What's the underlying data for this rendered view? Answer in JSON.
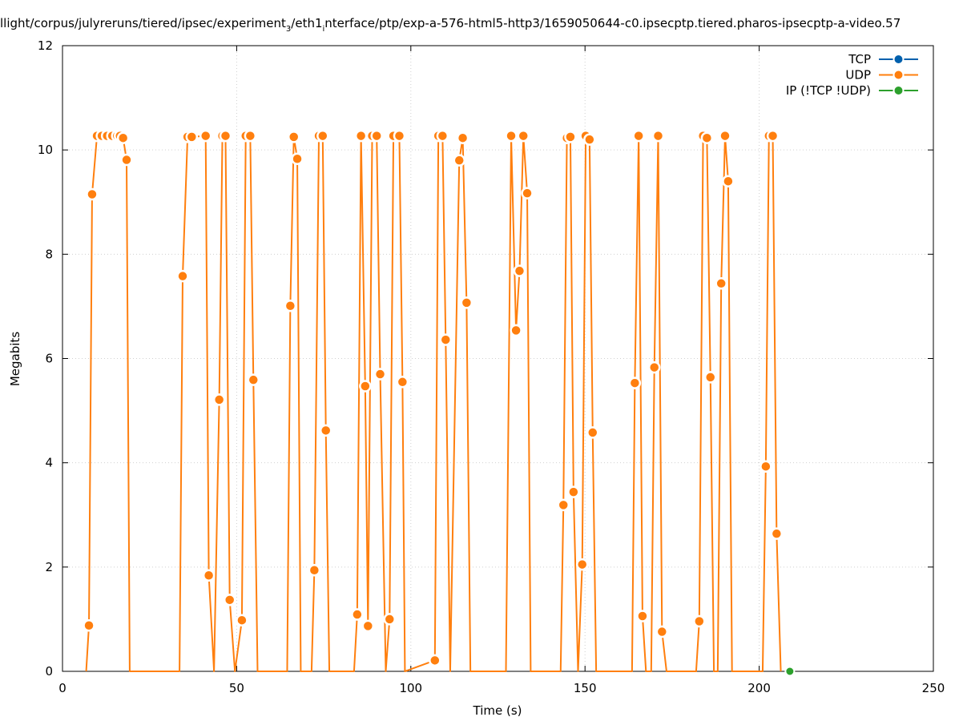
{
  "chart_data": {
    "type": "line",
    "title": "llight/corpus/julyreruns/tiered/ipsec/experiment",
    "title_parts": {
      "a": "llight/corpus/julyreruns/tiered/ipsec/experiment",
      "a_sub": "3",
      "b": "/eth1",
      "b_sub": "i",
      "c": "nterface/ptp/exp-a-576-html5-http3/1659050644-c0.ipsecptp.tiered.pharos-ipsecptp-a-video.57"
    },
    "xlabel": "Time (s)",
    "ylabel": "Megabits",
    "xlim": [
      0,
      250
    ],
    "ylim": [
      0,
      12
    ],
    "x_ticks": [
      "0",
      "50",
      "100",
      "150",
      "200",
      "250"
    ],
    "y_ticks": [
      "0",
      "2",
      "4",
      "6",
      "8",
      "10",
      "12"
    ],
    "grid": true,
    "legend_position": "top-right",
    "series": [
      {
        "name": "TCP",
        "color": "#0060ad",
        "points": []
      },
      {
        "name": "UDP",
        "color": "#ff7f0e",
        "points": [
          [
            6.8,
            0
          ],
          [
            7.6,
            0.88
          ],
          [
            8.5,
            9.15
          ],
          [
            9.9,
            10.27
          ],
          [
            11.3,
            10.27
          ],
          [
            12.8,
            10.27
          ],
          [
            14.3,
            10.27
          ],
          [
            15.7,
            10.27
          ],
          [
            16.5,
            10.27
          ],
          [
            17.4,
            10.23
          ],
          [
            18.4,
            9.81
          ],
          [
            19.3,
            0
          ],
          [
            33.6,
            0
          ],
          [
            34.5,
            7.58
          ],
          [
            35.9,
            10.25
          ],
          [
            37.1,
            10.25
          ],
          [
            41.1,
            10.27
          ],
          [
            42.0,
            1.84
          ],
          [
            43.5,
            0
          ],
          [
            45.0,
            5.21
          ],
          [
            45.9,
            10.27
          ],
          [
            46.8,
            10.27
          ],
          [
            48.0,
            1.37
          ],
          [
            49.5,
            0
          ],
          [
            51.5,
            0.98
          ],
          [
            52.6,
            10.27
          ],
          [
            53.9,
            10.27
          ],
          [
            54.8,
            5.59
          ],
          [
            56.0,
            0
          ],
          [
            64.5,
            0
          ],
          [
            65.4,
            7.01
          ],
          [
            66.4,
            10.25
          ],
          [
            67.4,
            9.83
          ],
          [
            68.4,
            0
          ],
          [
            71.5,
            0
          ],
          [
            72.3,
            1.94
          ],
          [
            73.6,
            10.27
          ],
          [
            74.7,
            10.27
          ],
          [
            75.6,
            4.62
          ],
          [
            76.6,
            0
          ],
          [
            83.7,
            0
          ],
          [
            84.6,
            1.09
          ],
          [
            85.7,
            10.27
          ],
          [
            86.9,
            5.47
          ],
          [
            87.7,
            0.87
          ],
          [
            88.9,
            10.27
          ],
          [
            90.2,
            10.27
          ],
          [
            91.2,
            5.7
          ],
          [
            92.8,
            0
          ],
          [
            93.9,
            1.0
          ],
          [
            95.0,
            10.27
          ],
          [
            96.7,
            10.27
          ],
          [
            97.6,
            5.55
          ],
          [
            98.3,
            0
          ],
          [
            106.9,
            0.21
          ],
          [
            107.9,
            10.27
          ],
          [
            109.1,
            10.27
          ],
          [
            110.0,
            6.36
          ],
          [
            111.3,
            0
          ],
          [
            113.9,
            9.8
          ],
          [
            114.9,
            10.23
          ],
          [
            116.0,
            7.07
          ],
          [
            117.1,
            0
          ],
          [
            127.3,
            0
          ],
          [
            128.8,
            10.27
          ],
          [
            130.2,
            6.54
          ],
          [
            131.2,
            7.68
          ],
          [
            132.3,
            10.27
          ],
          [
            133.4,
            9.17
          ],
          [
            134.4,
            0
          ],
          [
            143.0,
            0
          ],
          [
            143.8,
            3.19
          ],
          [
            144.8,
            10.23
          ],
          [
            145.8,
            10.25
          ],
          [
            146.7,
            3.44
          ],
          [
            148.0,
            0
          ],
          [
            149.2,
            2.05
          ],
          [
            150.2,
            10.27
          ],
          [
            151.3,
            10.2
          ],
          [
            152.2,
            4.58
          ],
          [
            153.2,
            0
          ],
          [
            163.5,
            0
          ],
          [
            164.3,
            5.53
          ],
          [
            165.4,
            10.27
          ],
          [
            166.5,
            1.06
          ],
          [
            167.5,
            0
          ],
          [
            169.0,
            0
          ],
          [
            169.9,
            5.83
          ],
          [
            171.0,
            10.27
          ],
          [
            172.1,
            0.76
          ],
          [
            173.4,
            0
          ],
          [
            181.9,
            0
          ],
          [
            182.8,
            0.96
          ],
          [
            183.9,
            10.27
          ],
          [
            185.0,
            10.23
          ],
          [
            186.0,
            5.64
          ],
          [
            187.0,
            0
          ],
          [
            188.1,
            0
          ],
          [
            189.1,
            7.44
          ],
          [
            190.2,
            10.27
          ],
          [
            191.1,
            9.4
          ],
          [
            192.2,
            0
          ],
          [
            201.0,
            0
          ],
          [
            201.9,
            3.93
          ],
          [
            202.8,
            10.27
          ],
          [
            203.9,
            10.27
          ],
          [
            205.0,
            2.64
          ],
          [
            206.2,
            0
          ]
        ]
      },
      {
        "name": "IP (!TCP  !UDP)",
        "color": "#2ca02c",
        "points": [
          [
            208.8,
            0
          ]
        ]
      }
    ]
  }
}
